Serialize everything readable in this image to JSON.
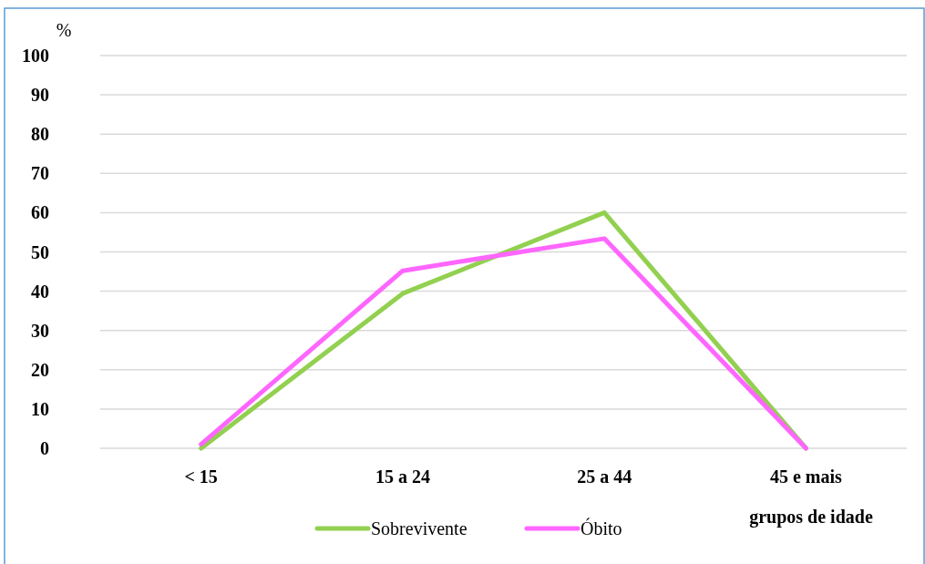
{
  "chart_data": {
    "type": "line",
    "ylabel": "%",
    "xlabel": "grupos de idade",
    "categories": [
      "< 15",
      "15 a 24",
      "25 a 44",
      "45 e mais"
    ],
    "series": [
      {
        "name": "Sobrevivente",
        "color": "#92d050",
        "values": [
          0,
          39.4,
          60,
          0
        ]
      },
      {
        "name": "Óbito",
        "color": "#ff66ff",
        "values": [
          1,
          45.2,
          53.4,
          0
        ]
      }
    ],
    "ylim": [
      0,
      100
    ],
    "yticks": [
      0,
      10,
      20,
      30,
      40,
      50,
      60,
      70,
      80,
      90,
      100
    ],
    "grid": "y",
    "legend": "bottom",
    "marker": "none"
  }
}
